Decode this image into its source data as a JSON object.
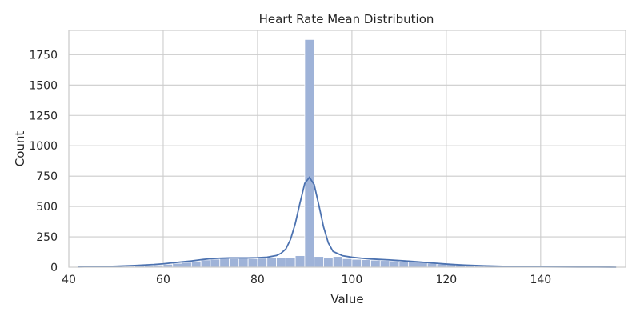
{
  "chart_data": {
    "type": "bar",
    "title": "Heart Rate Mean Distribution",
    "xlabel": "Value",
    "ylabel": "Count",
    "xlim": [
      40,
      158
    ],
    "ylim": [
      0,
      1950
    ],
    "xticks": [
      40,
      60,
      80,
      100,
      120,
      140
    ],
    "yticks": [
      0,
      250,
      500,
      750,
      1000,
      1250,
      1500,
      1750
    ],
    "grid": true,
    "colors": {
      "bars": "#9fb3d8",
      "kde": "#4c72b0",
      "grid": "#cccccc"
    },
    "bin_width": 2.0,
    "bins": [
      {
        "x0": 44,
        "count": 2
      },
      {
        "x0": 46,
        "count": 3
      },
      {
        "x0": 48,
        "count": 5
      },
      {
        "x0": 50,
        "count": 6
      },
      {
        "x0": 52,
        "count": 8
      },
      {
        "x0": 54,
        "count": 11
      },
      {
        "x0": 56,
        "count": 14
      },
      {
        "x0": 58,
        "count": 18
      },
      {
        "x0": 60,
        "count": 24
      },
      {
        "x0": 62,
        "count": 32
      },
      {
        "x0": 64,
        "count": 40
      },
      {
        "x0": 66,
        "count": 50
      },
      {
        "x0": 68,
        "count": 60
      },
      {
        "x0": 70,
        "count": 66
      },
      {
        "x0": 72,
        "count": 72
      },
      {
        "x0": 74,
        "count": 70
      },
      {
        "x0": 76,
        "count": 72
      },
      {
        "x0": 78,
        "count": 70
      },
      {
        "x0": 80,
        "count": 74
      },
      {
        "x0": 82,
        "count": 75
      },
      {
        "x0": 84,
        "count": 78
      },
      {
        "x0": 86,
        "count": 80
      },
      {
        "x0": 88,
        "count": 95
      },
      {
        "x0": 90,
        "count": 1875
      },
      {
        "x0": 92,
        "count": 88
      },
      {
        "x0": 94,
        "count": 75
      },
      {
        "x0": 96,
        "count": 88
      },
      {
        "x0": 98,
        "count": 70
      },
      {
        "x0": 100,
        "count": 65
      },
      {
        "x0": 102,
        "count": 62
      },
      {
        "x0": 104,
        "count": 58
      },
      {
        "x0": 106,
        "count": 55
      },
      {
        "x0": 108,
        "count": 52
      },
      {
        "x0": 110,
        "count": 48
      },
      {
        "x0": 112,
        "count": 44
      },
      {
        "x0": 114,
        "count": 40
      },
      {
        "x0": 116,
        "count": 32
      },
      {
        "x0": 118,
        "count": 26
      },
      {
        "x0": 120,
        "count": 22
      },
      {
        "x0": 122,
        "count": 18
      },
      {
        "x0": 124,
        "count": 14
      },
      {
        "x0": 126,
        "count": 12
      },
      {
        "x0": 128,
        "count": 9
      },
      {
        "x0": 130,
        "count": 7
      },
      {
        "x0": 132,
        "count": 6
      },
      {
        "x0": 134,
        "count": 5
      },
      {
        "x0": 136,
        "count": 4
      },
      {
        "x0": 138,
        "count": 3
      },
      {
        "x0": 140,
        "count": 2
      },
      {
        "x0": 142,
        "count": 2
      },
      {
        "x0": 144,
        "count": 1
      },
      {
        "x0": 146,
        "count": 1
      },
      {
        "x0": 148,
        "count": 1
      },
      {
        "x0": 150,
        "count": 1
      },
      {
        "x0": 152,
        "count": 1
      },
      {
        "x0": 154,
        "count": 1
      }
    ],
    "kde": {
      "x": [
        42,
        46,
        50,
        54,
        58,
        60,
        62,
        64,
        66,
        68,
        70,
        72,
        74,
        76,
        78,
        80,
        82,
        84,
        85,
        86,
        87,
        88,
        89,
        90,
        91,
        92,
        93,
        94,
        95,
        96,
        98,
        100,
        102,
        104,
        106,
        108,
        110,
        112,
        114,
        116,
        118,
        120,
        122,
        124,
        128,
        132,
        136,
        140,
        144,
        148,
        152,
        156
      ],
      "y": [
        2,
        4,
        8,
        14,
        22,
        28,
        36,
        44,
        52,
        62,
        70,
        74,
        76,
        76,
        76,
        78,
        82,
        96,
        115,
        150,
        230,
        360,
        530,
        690,
        740,
        680,
        510,
        330,
        200,
        130,
        95,
        82,
        74,
        68,
        64,
        60,
        55,
        50,
        44,
        38,
        32,
        26,
        21,
        17,
        11,
        7,
        5,
        3,
        2,
        1,
        1,
        0
      ]
    }
  }
}
